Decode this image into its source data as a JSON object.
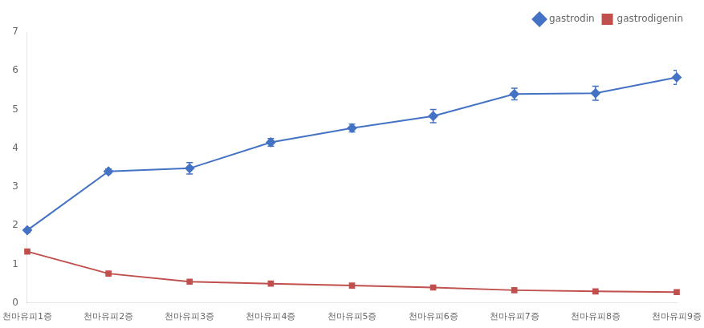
{
  "chart_data": {
    "type": "line",
    "categories": [
      "천마유피1증",
      "천마유피2증",
      "천마유피3증",
      "천마유피4증",
      "천마유피5증",
      "천마유피6증",
      "천마유피7증",
      "천마유피8증",
      "천마유피9증"
    ],
    "series": [
      {
        "name": "gastrodin",
        "color": "#4472C4",
        "marker": "diamond",
        "values": [
          1.88,
          3.4,
          3.48,
          4.15,
          4.52,
          4.83,
          5.4,
          5.42,
          5.83
        ],
        "errors": [
          0.06,
          0.06,
          0.15,
          0.1,
          0.1,
          0.17,
          0.15,
          0.18,
          0.18
        ]
      },
      {
        "name": "gastrodigenin",
        "color": "#C0504D",
        "marker": "square",
        "values": [
          1.33,
          0.76,
          0.55,
          0.5,
          0.45,
          0.4,
          0.33,
          0.3,
          0.28
        ],
        "errors": [
          0.0,
          0.0,
          0.0,
          0.0,
          0.0,
          0.0,
          0.0,
          0.0,
          0.0
        ]
      }
    ],
    "ylim": [
      0,
      7
    ],
    "yticks": [
      0,
      1,
      2,
      3,
      4,
      5,
      6,
      7
    ],
    "grid": false,
    "legend": "upper right"
  }
}
